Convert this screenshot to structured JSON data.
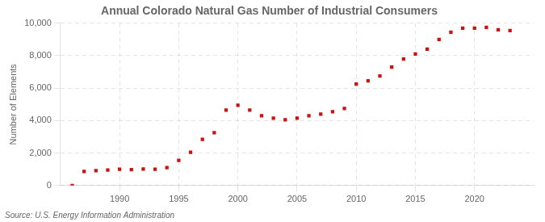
{
  "chart_data": {
    "type": "scatter",
    "title": "Annual Colorado Natural Gas Number of Industrial Consumers",
    "ylabel": "Number of Elements",
    "annotations": [
      "Source: U.S. Energy Information Administration"
    ],
    "x": [
      1986,
      1987,
      1988,
      1989,
      1990,
      1991,
      1992,
      1993,
      1994,
      1995,
      1996,
      1997,
      1998,
      1999,
      2000,
      2001,
      2002,
      2003,
      2004,
      2005,
      2006,
      2007,
      2008,
      2009,
      2010,
      2011,
      2012,
      2013,
      2014,
      2015,
      2016,
      2017,
      2018,
      2019,
      2020,
      2021,
      2022,
      2023
    ],
    "values": [
      0,
      870,
      920,
      960,
      1000,
      980,
      1020,
      1000,
      1100,
      1550,
      2050,
      2850,
      3250,
      4650,
      4950,
      4650,
      4300,
      4150,
      4050,
      4150,
      4300,
      4400,
      4550,
      4750,
      6250,
      6450,
      6750,
      7300,
      7800,
      8100,
      8400,
      9000,
      9450,
      9700,
      9700,
      9750,
      9600,
      9550
    ],
    "color": "#cc1111",
    "marker": "square",
    "xlim": [
      1985,
      2025
    ],
    "xticks": [
      1990,
      1995,
      2000,
      2005,
      2010,
      2015,
      2020
    ],
    "ylim": [
      0,
      10000
    ],
    "yticks": [
      0,
      {
        "value": 2000,
        "label": "2,000"
      },
      {
        "value": 4000,
        "label": "4,000"
      },
      {
        "value": 6000,
        "label": "6,000"
      },
      {
        "value": 8000,
        "label": "8,000"
      },
      {
        "value": 10000,
        "label": "10,000"
      }
    ],
    "grid": true
  }
}
